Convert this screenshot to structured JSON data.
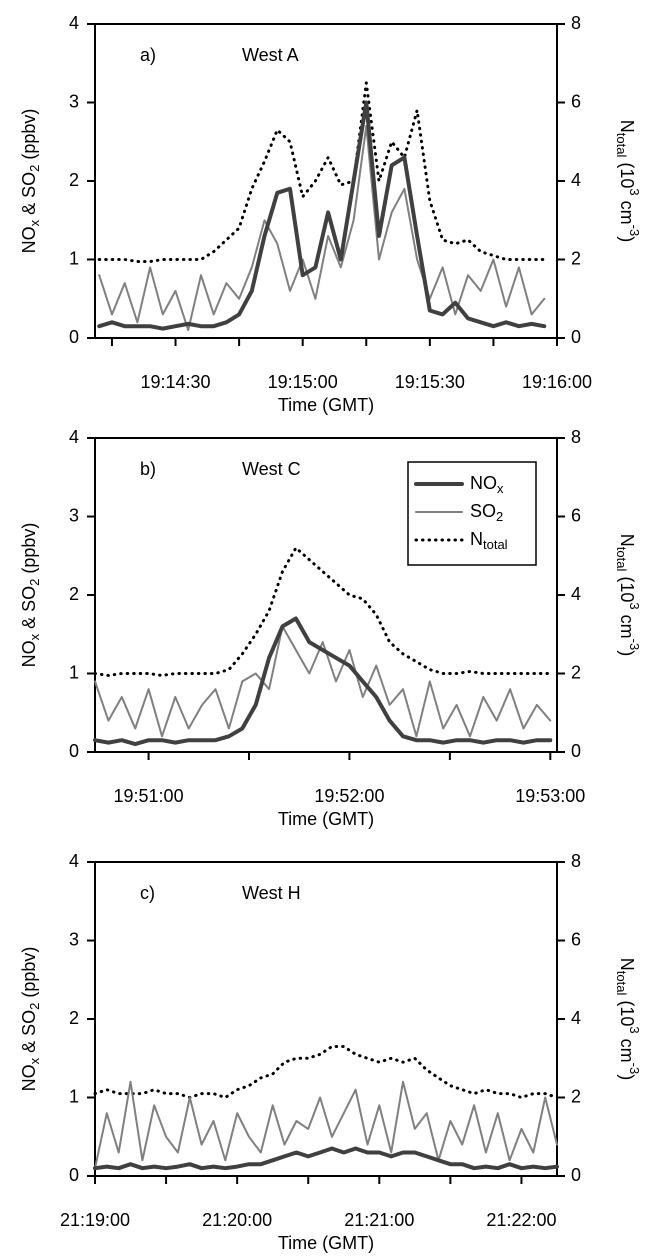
{
  "chart_data": [
    {
      "type": "line",
      "panel_label": "a)",
      "title": "West A",
      "x_label": "Time  (GMT)",
      "y_label": [
        {
          "text": "NO"
        },
        {
          "text": "x",
          "sub": true
        },
        {
          "text": " & SO"
        },
        {
          "text": "2",
          "sub": true
        },
        {
          "text": "  (ppbv)"
        }
      ],
      "y2_label": [
        {
          "text": "N"
        },
        {
          "text": "total",
          "sub": true
        },
        {
          "text": "  (10"
        },
        {
          "text": "3",
          "sup": true
        },
        {
          "text": " cm"
        },
        {
          "text": "-3",
          "sup": true
        },
        {
          "text": ")"
        }
      ],
      "xlim": [
        "19:14:11",
        "19:16:00"
      ],
      "xticks": [
        "19:14:30",
        "19:15:00",
        "19:15:30",
        "19:16:00"
      ],
      "xminorticks": [
        "19:14:15",
        "19:14:45",
        "19:15:15",
        "19:15:45"
      ],
      "ylim": [
        0,
        4
      ],
      "yticks": [
        0,
        1,
        2,
        3,
        4
      ],
      "y2lim": [
        0,
        8
      ],
      "y2ticks": [
        0,
        2,
        4,
        6,
        8
      ],
      "x": [
        "19:14:12",
        "19:14:15",
        "19:14:18",
        "19:14:21",
        "19:14:24",
        "19:14:27",
        "19:14:30",
        "19:14:33",
        "19:14:36",
        "19:14:39",
        "19:14:42",
        "19:14:45",
        "19:14:48",
        "19:14:51",
        "19:14:54",
        "19:14:57",
        "19:15:00",
        "19:15:03",
        "19:15:06",
        "19:15:09",
        "19:15:12",
        "19:15:15",
        "19:15:18",
        "19:15:21",
        "19:15:24",
        "19:15:27",
        "19:15:30",
        "19:15:33",
        "19:15:36",
        "19:15:39",
        "19:15:42",
        "19:15:45",
        "19:15:48",
        "19:15:51",
        "19:15:54",
        "19:15:57"
      ],
      "series": [
        {
          "color": "#404040",
          "values": [
            0.15,
            0.2,
            0.15,
            0.15,
            0.15,
            0.12,
            0.15,
            0.18,
            0.15,
            0.15,
            0.2,
            0.3,
            0.6,
            1.3,
            1.85,
            1.9,
            0.8,
            0.9,
            1.6,
            1.0,
            2.0,
            3.0,
            1.3,
            2.2,
            2.3,
            1.3,
            0.35,
            0.3,
            0.45,
            0.25,
            0.2,
            0.15,
            0.2,
            0.15,
            0.18,
            0.15
          ]
        },
        {
          "color": "#808080",
          "values": [
            0.8,
            0.3,
            0.7,
            0.2,
            0.9,
            0.3,
            0.6,
            0.1,
            0.8,
            0.3,
            0.7,
            0.5,
            0.9,
            1.5,
            1.2,
            0.6,
            1.0,
            0.5,
            1.3,
            0.9,
            1.5,
            2.7,
            1.0,
            1.6,
            1.9,
            1.0,
            0.5,
            0.9,
            0.3,
            0.8,
            0.6,
            1.0,
            0.4,
            0.9,
            0.3,
            0.5
          ]
        },
        {
          "color": "#000000",
          "axis": "y2",
          "values": [
            2.0,
            2.0,
            2.0,
            1.95,
            1.95,
            2.0,
            2.0,
            2.0,
            2.0,
            2.2,
            2.5,
            2.8,
            3.8,
            4.5,
            5.3,
            5.0,
            3.6,
            4.0,
            4.6,
            3.9,
            4.0,
            6.5,
            4.0,
            5.0,
            4.6,
            5.8,
            3.5,
            2.5,
            2.4,
            2.5,
            2.2,
            2.1,
            2.0,
            2.0,
            2.0,
            2.0
          ]
        }
      ]
    },
    {
      "type": "line",
      "panel_label": "b)",
      "title": "West C",
      "x_label": "Time  (GMT)",
      "y_label": [
        {
          "text": "NO"
        },
        {
          "text": "x",
          "sub": true
        },
        {
          "text": " & SO"
        },
        {
          "text": "2",
          "sub": true
        },
        {
          "text": "  (ppbv)"
        }
      ],
      "y2_label": [
        {
          "text": "N"
        },
        {
          "text": "total",
          "sub": true
        },
        {
          "text": "  (10"
        },
        {
          "text": "3",
          "sup": true
        },
        {
          "text": " cm"
        },
        {
          "text": "-3",
          "sup": true
        },
        {
          "text": ")"
        }
      ],
      "legend": "upper right",
      "xlim": [
        "19:50:44",
        "19:53:02"
      ],
      "xticks": [
        "19:51:00",
        "19:52:00",
        "19:53:00"
      ],
      "xminorticks": [
        "19:51:30",
        "19:52:30"
      ],
      "ylim": [
        0,
        4
      ],
      "yticks": [
        0,
        1,
        2,
        3,
        4
      ],
      "y2lim": [
        0,
        8
      ],
      "y2ticks": [
        0,
        2,
        4,
        6,
        8
      ],
      "x": [
        "19:50:44",
        "19:50:48",
        "19:50:52",
        "19:50:56",
        "19:51:00",
        "19:51:04",
        "19:51:08",
        "19:51:12",
        "19:51:16",
        "19:51:20",
        "19:51:24",
        "19:51:28",
        "19:51:32",
        "19:51:36",
        "19:51:40",
        "19:51:44",
        "19:51:48",
        "19:51:52",
        "19:51:56",
        "19:52:00",
        "19:52:04",
        "19:52:08",
        "19:52:12",
        "19:52:16",
        "19:52:20",
        "19:52:24",
        "19:52:28",
        "19:52:32",
        "19:52:36",
        "19:52:40",
        "19:52:44",
        "19:52:48",
        "19:52:52",
        "19:52:56",
        "19:53:00"
      ],
      "series": [
        {
          "name": [
            {
              "text": "NO"
            },
            {
              "text": "x",
              "sub": true
            }
          ],
          "color": "#404040",
          "values": [
            0.15,
            0.12,
            0.15,
            0.1,
            0.15,
            0.15,
            0.12,
            0.15,
            0.15,
            0.15,
            0.2,
            0.3,
            0.6,
            1.2,
            1.6,
            1.7,
            1.4,
            1.3,
            1.2,
            1.1,
            0.9,
            0.7,
            0.4,
            0.2,
            0.15,
            0.15,
            0.12,
            0.15,
            0.15,
            0.12,
            0.15,
            0.15,
            0.12,
            0.15,
            0.15
          ]
        },
        {
          "name": [
            {
              "text": "SO"
            },
            {
              "text": "2",
              "sub": true
            }
          ],
          "color": "#808080",
          "values": [
            0.9,
            0.4,
            0.7,
            0.3,
            0.8,
            0.2,
            0.7,
            0.3,
            0.6,
            0.8,
            0.3,
            0.9,
            1.0,
            0.8,
            1.6,
            1.3,
            1.0,
            1.4,
            0.9,
            1.3,
            0.7,
            1.1,
            0.6,
            0.8,
            0.2,
            0.9,
            0.3,
            0.6,
            0.2,
            0.7,
            0.4,
            0.8,
            0.3,
            0.6,
            0.4
          ]
        },
        {
          "name": [
            {
              "text": "N"
            },
            {
              "text": "total",
              "sub": true
            }
          ],
          "color": "#000000",
          "axis": "y2",
          "values": [
            2.0,
            1.95,
            2.0,
            2.0,
            2.0,
            1.95,
            2.0,
            2.0,
            2.0,
            2.0,
            2.1,
            2.5,
            3.0,
            3.6,
            4.6,
            5.2,
            4.9,
            4.6,
            4.3,
            4.0,
            3.9,
            3.5,
            2.8,
            2.5,
            2.3,
            2.1,
            2.0,
            2.0,
            2.05,
            2.0,
            2.0,
            2.0,
            2.0,
            2.0,
            2.0
          ]
        }
      ]
    },
    {
      "type": "line",
      "panel_label": "c)",
      "title": "West H",
      "x_label": "Time  (GMT)",
      "y_label": [
        {
          "text": "NO"
        },
        {
          "text": "x",
          "sub": true
        },
        {
          "text": " & SO"
        },
        {
          "text": "2",
          "sub": true
        },
        {
          "text": "  (ppbv)"
        }
      ],
      "y2_label": [
        {
          "text": "N"
        },
        {
          "text": "total",
          "sub": true
        },
        {
          "text": "  (10"
        },
        {
          "text": "3",
          "sup": true
        },
        {
          "text": " cm"
        },
        {
          "text": "-3",
          "sup": true
        },
        {
          "text": ")"
        }
      ],
      "xlim": [
        "21:19:00",
        "21:22:15"
      ],
      "xticks": [
        "21:19:00",
        "21:20:00",
        "21:21:00",
        "21:22:00"
      ],
      "xminorticks": [
        "21:19:30",
        "21:20:30",
        "21:21:30"
      ],
      "ylim": [
        0,
        4
      ],
      "yticks": [
        0,
        1,
        2,
        3,
        4
      ],
      "y2lim": [
        0,
        8
      ],
      "y2ticks": [
        0,
        2,
        4,
        6,
        8
      ],
      "x": [
        "21:19:00",
        "21:19:05",
        "21:19:10",
        "21:19:15",
        "21:19:20",
        "21:19:25",
        "21:19:30",
        "21:19:35",
        "21:19:40",
        "21:19:45",
        "21:19:50",
        "21:19:55",
        "21:20:00",
        "21:20:05",
        "21:20:10",
        "21:20:15",
        "21:20:20",
        "21:20:25",
        "21:20:30",
        "21:20:35",
        "21:20:40",
        "21:20:45",
        "21:20:50",
        "21:20:55",
        "21:21:00",
        "21:21:05",
        "21:21:10",
        "21:21:15",
        "21:21:20",
        "21:21:25",
        "21:21:30",
        "21:21:35",
        "21:21:40",
        "21:21:45",
        "21:21:50",
        "21:21:55",
        "21:22:00",
        "21:22:05",
        "21:22:10",
        "21:22:15"
      ],
      "series": [
        {
          "color": "#404040",
          "values": [
            0.1,
            0.12,
            0.1,
            0.15,
            0.1,
            0.12,
            0.1,
            0.12,
            0.15,
            0.1,
            0.12,
            0.1,
            0.12,
            0.15,
            0.15,
            0.2,
            0.25,
            0.3,
            0.25,
            0.3,
            0.35,
            0.3,
            0.35,
            0.3,
            0.3,
            0.25,
            0.3,
            0.3,
            0.25,
            0.2,
            0.15,
            0.15,
            0.1,
            0.12,
            0.1,
            0.15,
            0.1,
            0.12,
            0.1,
            0.12
          ]
        },
        {
          "color": "#808080",
          "values": [
            0.1,
            0.8,
            0.3,
            1.2,
            0.2,
            0.9,
            0.5,
            0.3,
            1.0,
            0.4,
            0.7,
            0.2,
            0.8,
            0.5,
            0.3,
            0.9,
            0.4,
            0.7,
            0.6,
            1.0,
            0.5,
            0.8,
            1.1,
            0.4,
            0.9,
            0.3,
            1.2,
            0.6,
            0.8,
            0.2,
            0.7,
            0.4,
            0.9,
            0.3,
            0.8,
            0.2,
            0.6,
            0.3,
            1.0,
            0.4
          ]
        },
        {
          "color": "#000000",
          "axis": "y2",
          "values": [
            2.1,
            2.2,
            2.1,
            2.1,
            2.1,
            2.2,
            2.1,
            2.1,
            2.0,
            2.1,
            2.1,
            2.0,
            2.2,
            2.3,
            2.5,
            2.6,
            2.9,
            3.0,
            3.0,
            3.1,
            3.3,
            3.3,
            3.1,
            3.0,
            2.9,
            3.0,
            2.9,
            3.0,
            2.7,
            2.5,
            2.3,
            2.2,
            2.1,
            2.2,
            2.1,
            2.1,
            2.0,
            2.1,
            2.1,
            2.0
          ]
        }
      ]
    }
  ]
}
